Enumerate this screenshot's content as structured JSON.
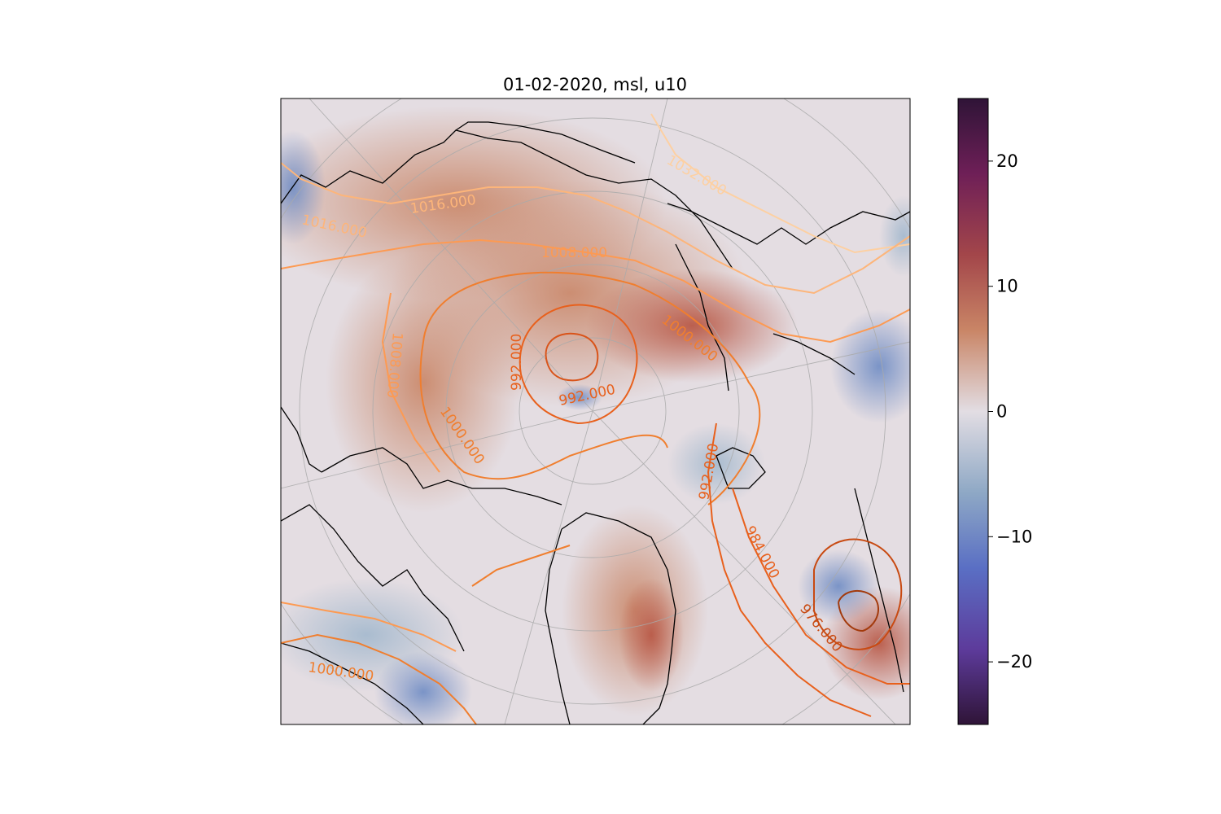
{
  "title": "01-02-2020, msl, u10",
  "colorbar": {
    "range": [
      -25,
      25
    ],
    "ticks": [
      {
        "value": 20,
        "label": "20"
      },
      {
        "value": 10,
        "label": "10"
      },
      {
        "value": 0,
        "label": "0"
      },
      {
        "value": -10,
        "label": "−10"
      },
      {
        "value": -20,
        "label": "−20"
      }
    ],
    "colormap": "twilight_shifted-like diverging (purple – blue – white – orange – maroon)"
  },
  "map": {
    "projection": "north-polar stereographic",
    "background_field": "u10",
    "contour_field": "msl",
    "coastlines": true,
    "gridlines": true
  },
  "contours": {
    "labels": [
      "1016.000",
      "1016.000",
      "1032.000",
      "1008.000",
      "1000.000",
      "992.000",
      "992.000",
      "1008.000",
      "1000.000",
      "992.000",
      "984.000",
      "976.000",
      "1000.000"
    ],
    "colors": {
      "high": "#fdd0a2",
      "mid": "#fd9a52",
      "low": "#e8601c",
      "lowest": "#b03a0a"
    }
  }
}
